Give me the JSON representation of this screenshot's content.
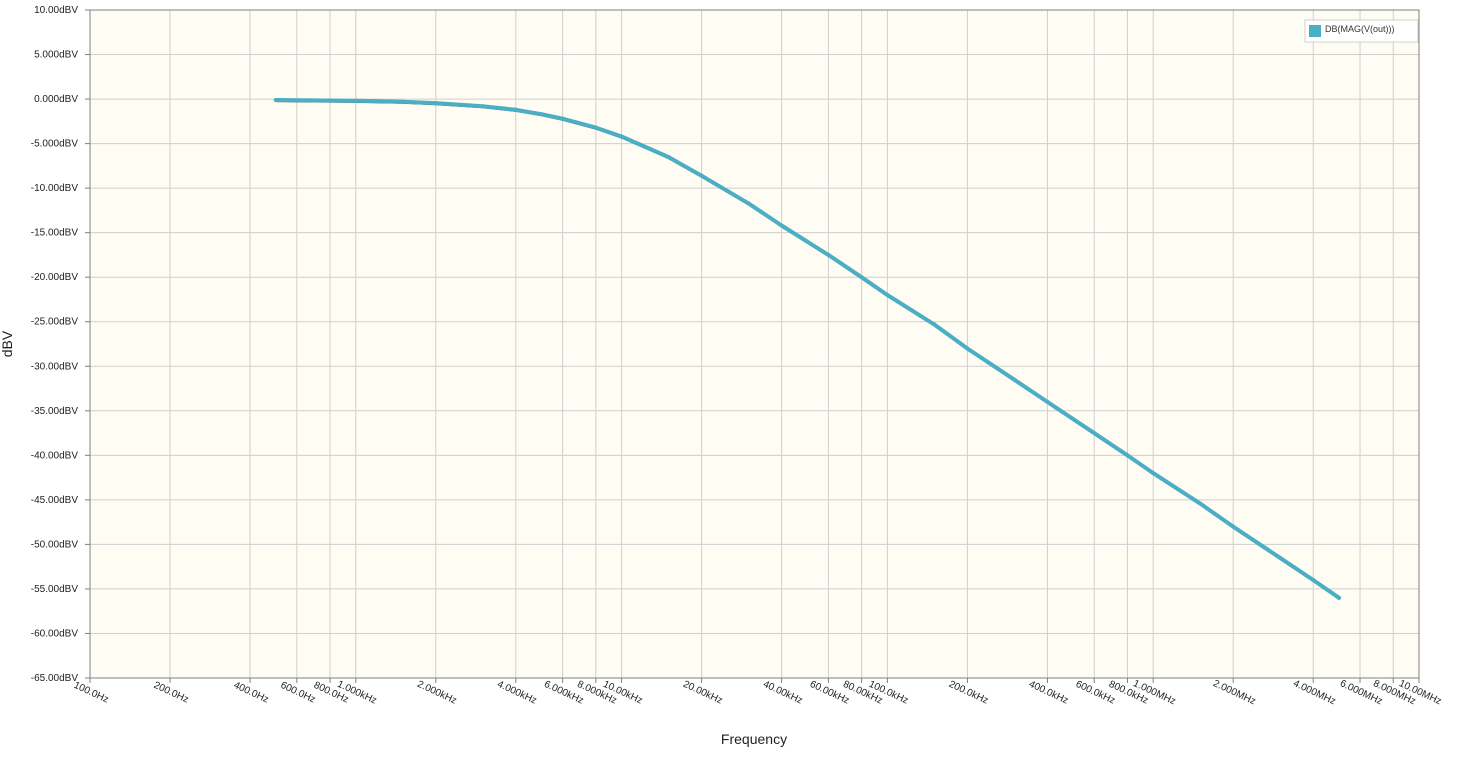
{
  "chart_data": {
    "type": "line",
    "title": "",
    "xlabel": "Frequency",
    "ylabel": "dBV",
    "x_scale": "log",
    "xlim": [
      100,
      10000000
    ],
    "ylim": [
      -65,
      10
    ],
    "grid": true,
    "legend_position": "top-right",
    "background_color": "#fffcf3",
    "grid_color": "#cfcfcf",
    "yticks": [
      {
        "value": 10,
        "label": "10.00dBV"
      },
      {
        "value": 5,
        "label": "5.000dBV"
      },
      {
        "value": 0,
        "label": "0.000dBV"
      },
      {
        "value": -5,
        "label": "-5.000dBV"
      },
      {
        "value": -10,
        "label": "-10.00dBV"
      },
      {
        "value": -15,
        "label": "-15.00dBV"
      },
      {
        "value": -20,
        "label": "-20.00dBV"
      },
      {
        "value": -25,
        "label": "-25.00dBV"
      },
      {
        "value": -30,
        "label": "-30.00dBV"
      },
      {
        "value": -35,
        "label": "-35.00dBV"
      },
      {
        "value": -40,
        "label": "-40.00dBV"
      },
      {
        "value": -45,
        "label": "-45.00dBV"
      },
      {
        "value": -50,
        "label": "-50.00dBV"
      },
      {
        "value": -55,
        "label": "-55.00dBV"
      },
      {
        "value": -60,
        "label": "-60.00dBV"
      },
      {
        "value": -65,
        "label": "-65.00dBV"
      }
    ],
    "xticks": [
      {
        "value": 100,
        "label": "100.0Hz"
      },
      {
        "value": 200,
        "label": "200.0Hz"
      },
      {
        "value": 400,
        "label": "400.0Hz"
      },
      {
        "value": 600,
        "label": "600.0Hz"
      },
      {
        "value": 800,
        "label": "800.0Hz"
      },
      {
        "value": 1000,
        "label": "1.000kHz"
      },
      {
        "value": 2000,
        "label": "2.000kHz"
      },
      {
        "value": 4000,
        "label": "4.000kHz"
      },
      {
        "value": 6000,
        "label": "6.000kHz"
      },
      {
        "value": 8000,
        "label": "8.000kHz"
      },
      {
        "value": 10000,
        "label": "10.00kHz"
      },
      {
        "value": 20000,
        "label": "20.00kHz"
      },
      {
        "value": 40000,
        "label": "40.00kHz"
      },
      {
        "value": 60000,
        "label": "60.00kHz"
      },
      {
        "value": 80000,
        "label": "80.00kHz"
      },
      {
        "value": 100000,
        "label": "100.0kHz"
      },
      {
        "value": 200000,
        "label": "200.0kHz"
      },
      {
        "value": 400000,
        "label": "400.0kHz"
      },
      {
        "value": 600000,
        "label": "600.0kHz"
      },
      {
        "value": 800000,
        "label": "800.0kHz"
      },
      {
        "value": 1000000,
        "label": "1.000MHz"
      },
      {
        "value": 2000000,
        "label": "2.000MHz"
      },
      {
        "value": 4000000,
        "label": "4.000MHz"
      },
      {
        "value": 6000000,
        "label": "6.000MHz"
      },
      {
        "value": 8000000,
        "label": "8.000MHz"
      },
      {
        "value": 10000000,
        "label": "10.00MHz"
      }
    ],
    "series": [
      {
        "name": "DB(MAG(V(out)))",
        "color": "#4aaec4",
        "x": [
          500,
          700,
          1000,
          1500,
          2000,
          3000,
          4000,
          5000,
          6000,
          8000,
          10000,
          15000,
          20000,
          30000,
          40000,
          60000,
          80000,
          100000,
          150000,
          200000,
          300000,
          400000,
          600000,
          800000,
          1000000,
          1500000,
          2000000,
          3000000,
          4000000,
          5000000
        ],
        "y": [
          -0.1,
          -0.15,
          -0.2,
          -0.3,
          -0.45,
          -0.8,
          -1.2,
          -1.7,
          -2.2,
          -3.2,
          -4.2,
          -6.5,
          -8.6,
          -11.7,
          -14.2,
          -17.5,
          -20.0,
          -22.0,
          -25.3,
          -28.0,
          -31.5,
          -34.0,
          -37.5,
          -40.0,
          -42.0,
          -45.4,
          -48.0,
          -51.5,
          -54.0,
          -56.0
        ]
      }
    ]
  }
}
